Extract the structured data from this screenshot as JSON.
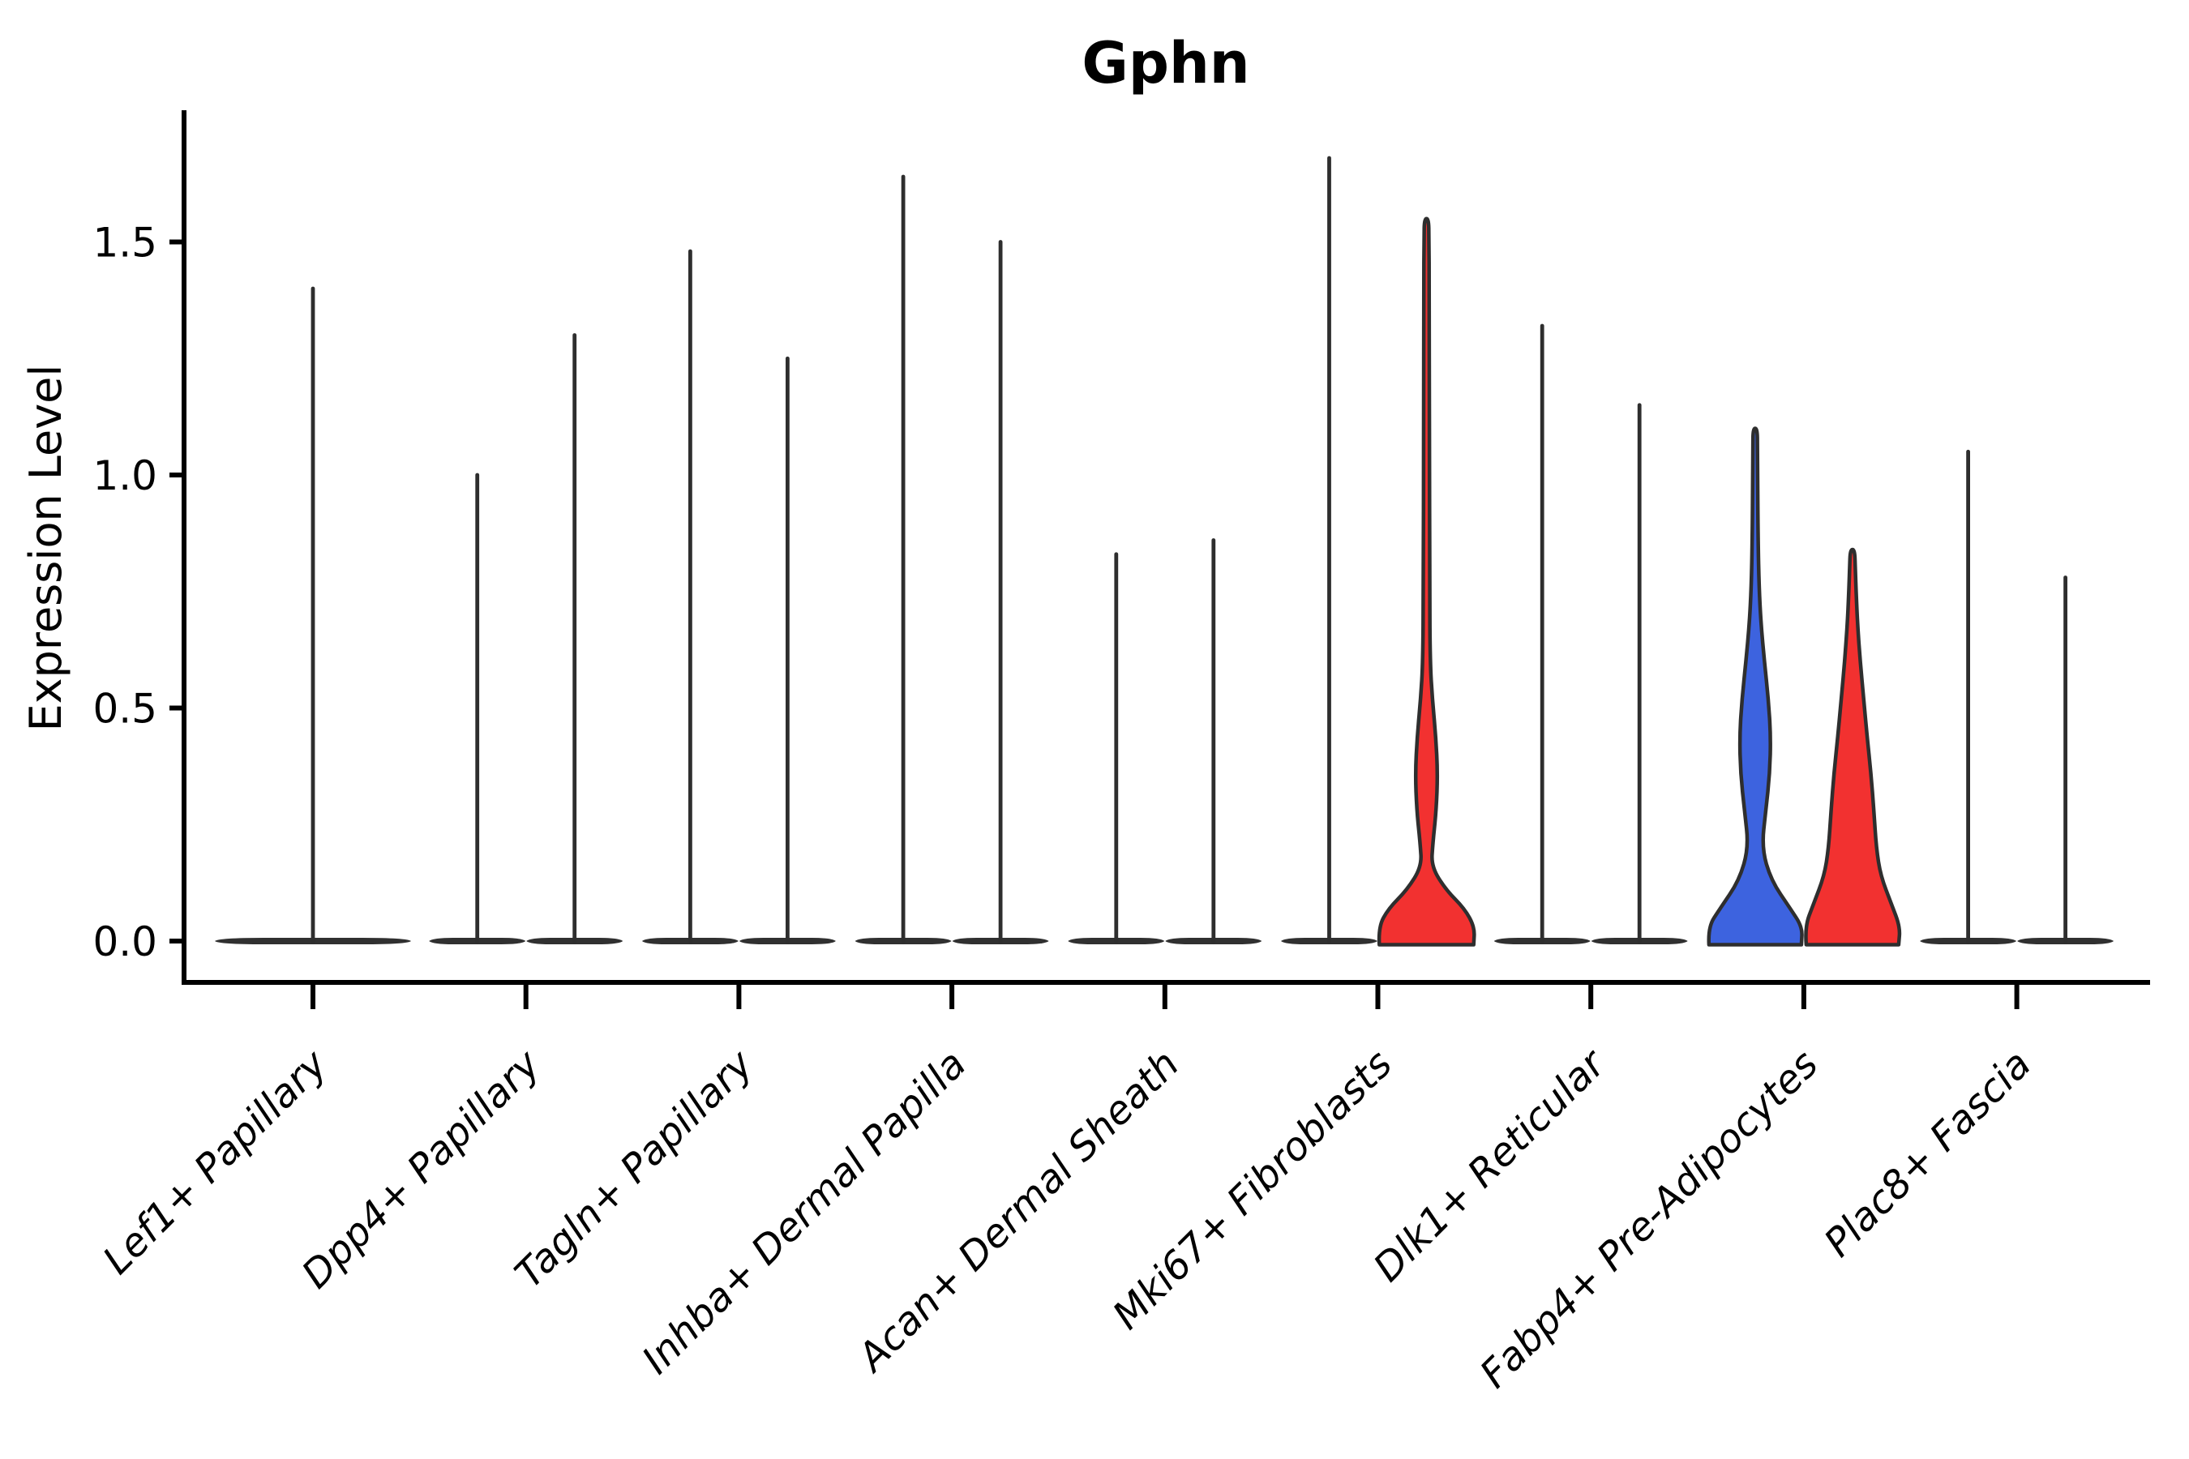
{
  "page": {
    "background": "#ffffff"
  },
  "chart_data": {
    "type": "violin",
    "title": "Gphn",
    "xlabel": "",
    "ylabel": "Expression Level",
    "yticks": [
      0.0,
      0.5,
      1.0,
      1.5
    ],
    "ytick_labels": [
      "0.0",
      "0.5",
      "1.0",
      "1.5"
    ],
    "ylim": [
      -0.09,
      1.79
    ],
    "grid": false,
    "legend": "none",
    "x_label_rotation_deg": 45,
    "x_label_style": "italic",
    "split_plot": true,
    "categories": [
      "Lef1+ Papillary",
      "Dpp4+ Papillary",
      "Tagln+ Papillary",
      "Inhba+ Dermal Papilla",
      "Acan+ Dermal Sheath",
      "Mki67+ Fibroblasts",
      "Dlk1+ Reticular",
      "Fabp4+ Pre-Adipocytes",
      "Plac8+ Fascia"
    ],
    "category_slugs": [
      "lef1-papillary",
      "dpp4-papillary",
      "tagln-papillary",
      "inhba-dermal-papilla",
      "acan-dermal-sheath",
      "mki67-fibroblasts",
      "dlk1-reticular",
      "fabp4-pre-adipocytes",
      "plac8-fascia"
    ],
    "colors": {
      "split_blue": "#3D63DF",
      "split_red": "#F23130",
      "outline": "#2E2E2E",
      "solid_dark": "#303030",
      "axis": "#000000",
      "text": "#000000"
    },
    "violins": [
      {
        "category_index": 0,
        "slot": "center",
        "style": "spike",
        "fill": "plain",
        "max_expression": 1.4
      },
      {
        "category_index": 1,
        "slot": "left",
        "style": "spike",
        "fill": "plain",
        "max_expression": 1.0
      },
      {
        "category_index": 1,
        "slot": "right",
        "style": "spike",
        "fill": "plain",
        "max_expression": 1.3
      },
      {
        "category_index": 2,
        "slot": "left",
        "style": "spike",
        "fill": "plain",
        "max_expression": 1.48
      },
      {
        "category_index": 2,
        "slot": "right",
        "style": "spike",
        "fill": "plain",
        "max_expression": 1.25
      },
      {
        "category_index": 3,
        "slot": "left",
        "style": "spike",
        "fill": "plain",
        "max_expression": 1.64
      },
      {
        "category_index": 3,
        "slot": "right",
        "style": "spike",
        "fill": "plain",
        "max_expression": 1.5
      },
      {
        "category_index": 4,
        "slot": "left",
        "style": "spike",
        "fill": "plain",
        "max_expression": 0.83
      },
      {
        "category_index": 4,
        "slot": "right",
        "style": "spike",
        "fill": "plain",
        "max_expression": 0.86
      },
      {
        "category_index": 5,
        "slot": "left",
        "style": "spike",
        "fill": "plain",
        "max_expression": 1.68
      },
      {
        "category_index": 5,
        "slot": "right",
        "style": "shaped",
        "fill": "red",
        "max_expression": 1.55,
        "profile": [
          [
            0,
            0.97
          ],
          [
            0.03,
            0.99
          ],
          [
            0.07,
            0.78
          ],
          [
            0.11,
            0.4
          ],
          [
            0.16,
            0.1
          ],
          [
            0.21,
            0.13
          ],
          [
            0.28,
            0.2
          ],
          [
            0.36,
            0.23
          ],
          [
            0.44,
            0.19
          ],
          [
            0.52,
            0.12
          ],
          [
            0.6,
            0.075
          ],
          [
            0.75,
            0.065
          ],
          [
            1.1,
            0.06
          ],
          [
            1.4,
            0.055
          ],
          [
            1.51,
            0.05
          ],
          [
            1.55,
            0.042
          ]
        ]
      },
      {
        "category_index": 6,
        "slot": "left",
        "style": "spike",
        "fill": "plain",
        "max_expression": 1.32
      },
      {
        "category_index": 6,
        "slot": "right",
        "style": "spike",
        "fill": "plain",
        "max_expression": 1.15
      },
      {
        "category_index": 7,
        "slot": "left",
        "style": "shaped",
        "fill": "blue",
        "max_expression": 1.1,
        "profile": [
          [
            0,
            0.95
          ],
          [
            0.03,
            0.97
          ],
          [
            0.07,
            0.72
          ],
          [
            0.13,
            0.33
          ],
          [
            0.2,
            0.135
          ],
          [
            0.28,
            0.22
          ],
          [
            0.36,
            0.3
          ],
          [
            0.44,
            0.32
          ],
          [
            0.52,
            0.27
          ],
          [
            0.6,
            0.19
          ],
          [
            0.68,
            0.12
          ],
          [
            0.76,
            0.08
          ],
          [
            0.86,
            0.06
          ],
          [
            1.0,
            0.05
          ],
          [
            1.06,
            0.047
          ],
          [
            1.1,
            0.042
          ]
        ]
      },
      {
        "category_index": 7,
        "slot": "right",
        "style": "shaped",
        "fill": "red",
        "max_expression": 0.84,
        "profile": [
          [
            0,
            0.95
          ],
          [
            0.03,
            0.98
          ],
          [
            0.08,
            0.8
          ],
          [
            0.14,
            0.58
          ],
          [
            0.2,
            0.49
          ],
          [
            0.28,
            0.44
          ],
          [
            0.36,
            0.38
          ],
          [
            0.44,
            0.3
          ],
          [
            0.52,
            0.23
          ],
          [
            0.6,
            0.16
          ],
          [
            0.68,
            0.105
          ],
          [
            0.75,
            0.075
          ],
          [
            0.8,
            0.058
          ],
          [
            0.84,
            0.045
          ]
        ]
      },
      {
        "category_index": 8,
        "slot": "left",
        "style": "spike",
        "fill": "plain",
        "max_expression": 1.05
      },
      {
        "category_index": 8,
        "slot": "right",
        "style": "spike",
        "fill": "plain",
        "max_expression": 0.78
      }
    ]
  }
}
